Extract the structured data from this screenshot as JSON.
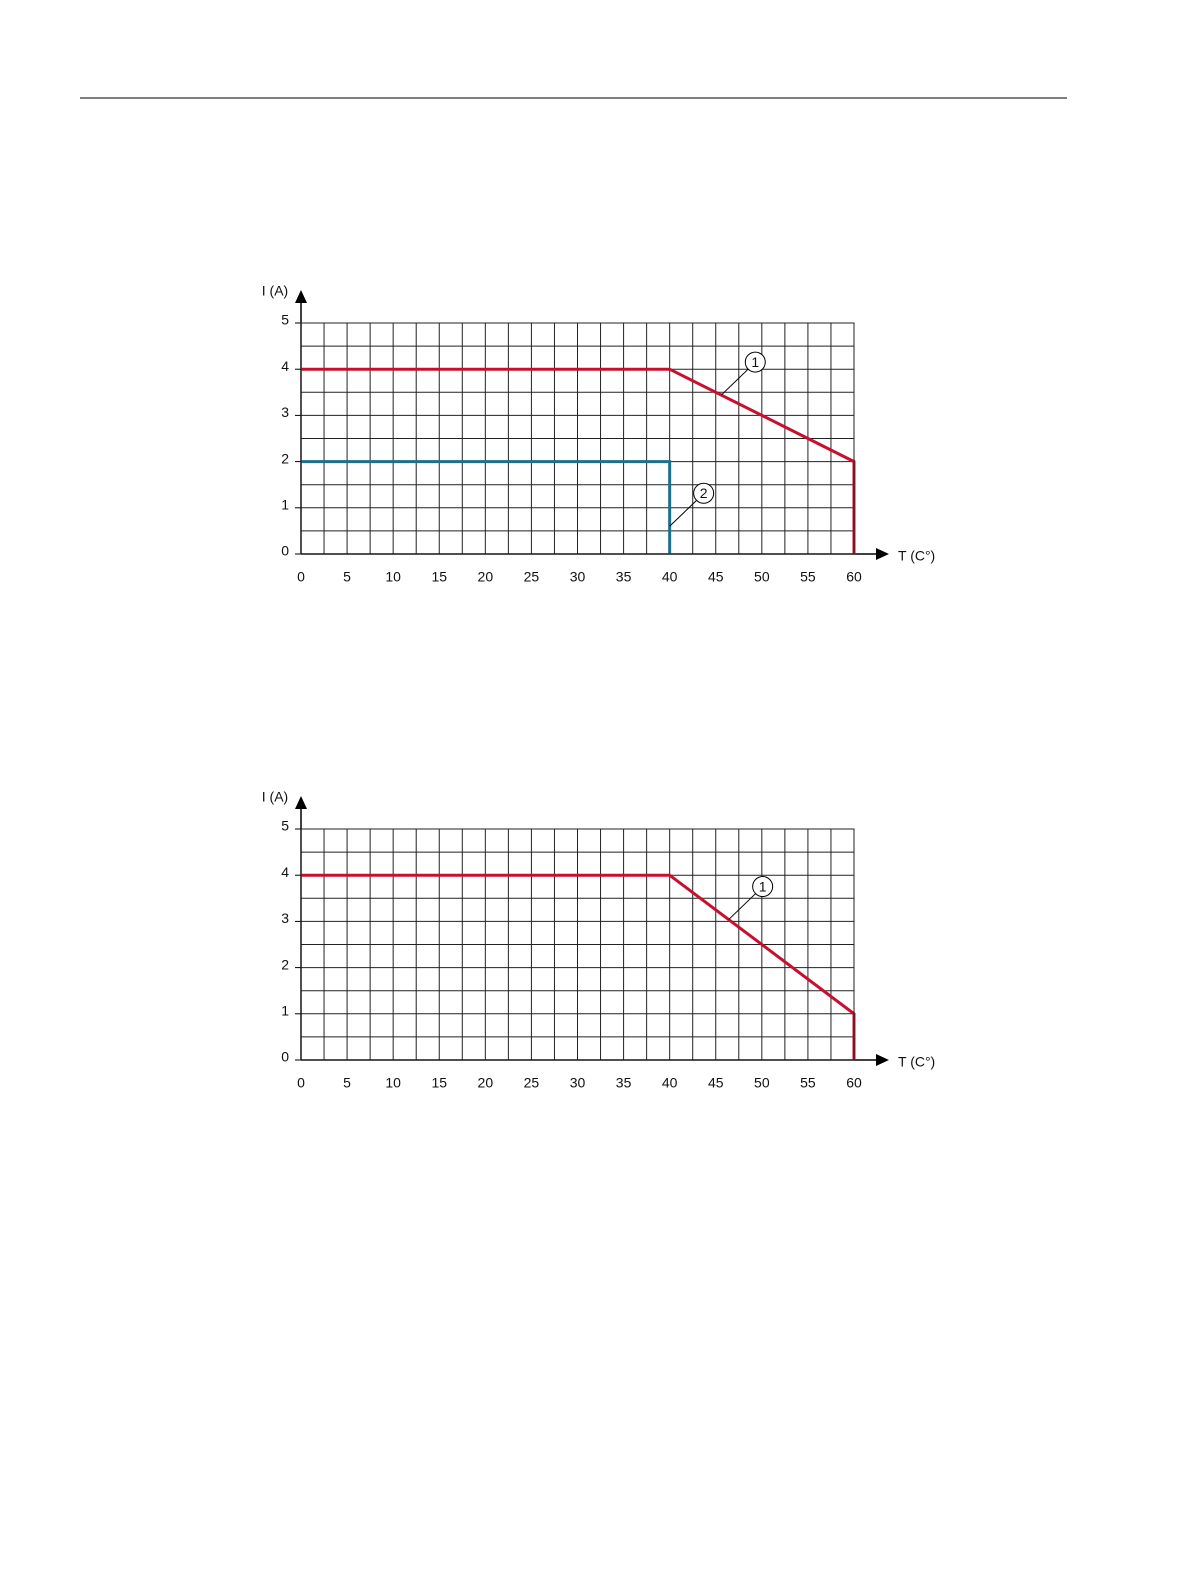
{
  "chart_data": [
    {
      "type": "line",
      "xlabel": "T (C°)",
      "ylabel": "I (A)",
      "xlim": [
        0,
        60
      ],
      "ylim": [
        0,
        5
      ],
      "xticks": [
        0,
        5,
        10,
        15,
        20,
        25,
        30,
        35,
        40,
        45,
        50,
        55,
        60
      ],
      "yticks": [
        0,
        1,
        2,
        3,
        4,
        5
      ],
      "minor_xticks": [
        2.5,
        7.5,
        12.5,
        17.5,
        22.5,
        27.5,
        32.5,
        37.5,
        42.5,
        47.5,
        52.5,
        57.5
      ],
      "minor_yticks": [
        0.5,
        1.5,
        2.5,
        3.5,
        4.5
      ],
      "grid": true,
      "series": [
        {
          "color": "#c8102e",
          "annotation": "1",
          "x": [
            0,
            40,
            60,
            60
          ],
          "values": [
            4,
            4,
            2,
            0
          ]
        },
        {
          "color": "#1b6f8f",
          "annotation": "2",
          "x": [
            0,
            40,
            40
          ],
          "values": [
            2,
            2,
            0
          ]
        }
      ]
    },
    {
      "type": "line",
      "xlabel": "T (C°)",
      "ylabel": "I (A)",
      "xlim": [
        0,
        60
      ],
      "ylim": [
        0,
        5
      ],
      "xticks": [
        0,
        5,
        10,
        15,
        20,
        25,
        30,
        35,
        40,
        45,
        50,
        55,
        60
      ],
      "yticks": [
        0,
        1,
        2,
        3,
        4,
        5
      ],
      "minor_xticks": [
        2.5,
        7.5,
        12.5,
        17.5,
        22.5,
        27.5,
        32.5,
        37.5,
        42.5,
        47.5,
        52.5,
        57.5
      ],
      "minor_yticks": [
        0.5,
        1.5,
        2.5,
        3.5,
        4.5
      ],
      "grid": true,
      "series": [
        {
          "color": "#c8102e",
          "annotation": "1",
          "x": [
            0,
            40,
            60,
            60
          ],
          "values": [
            4,
            4,
            1,
            0
          ]
        }
      ]
    }
  ]
}
